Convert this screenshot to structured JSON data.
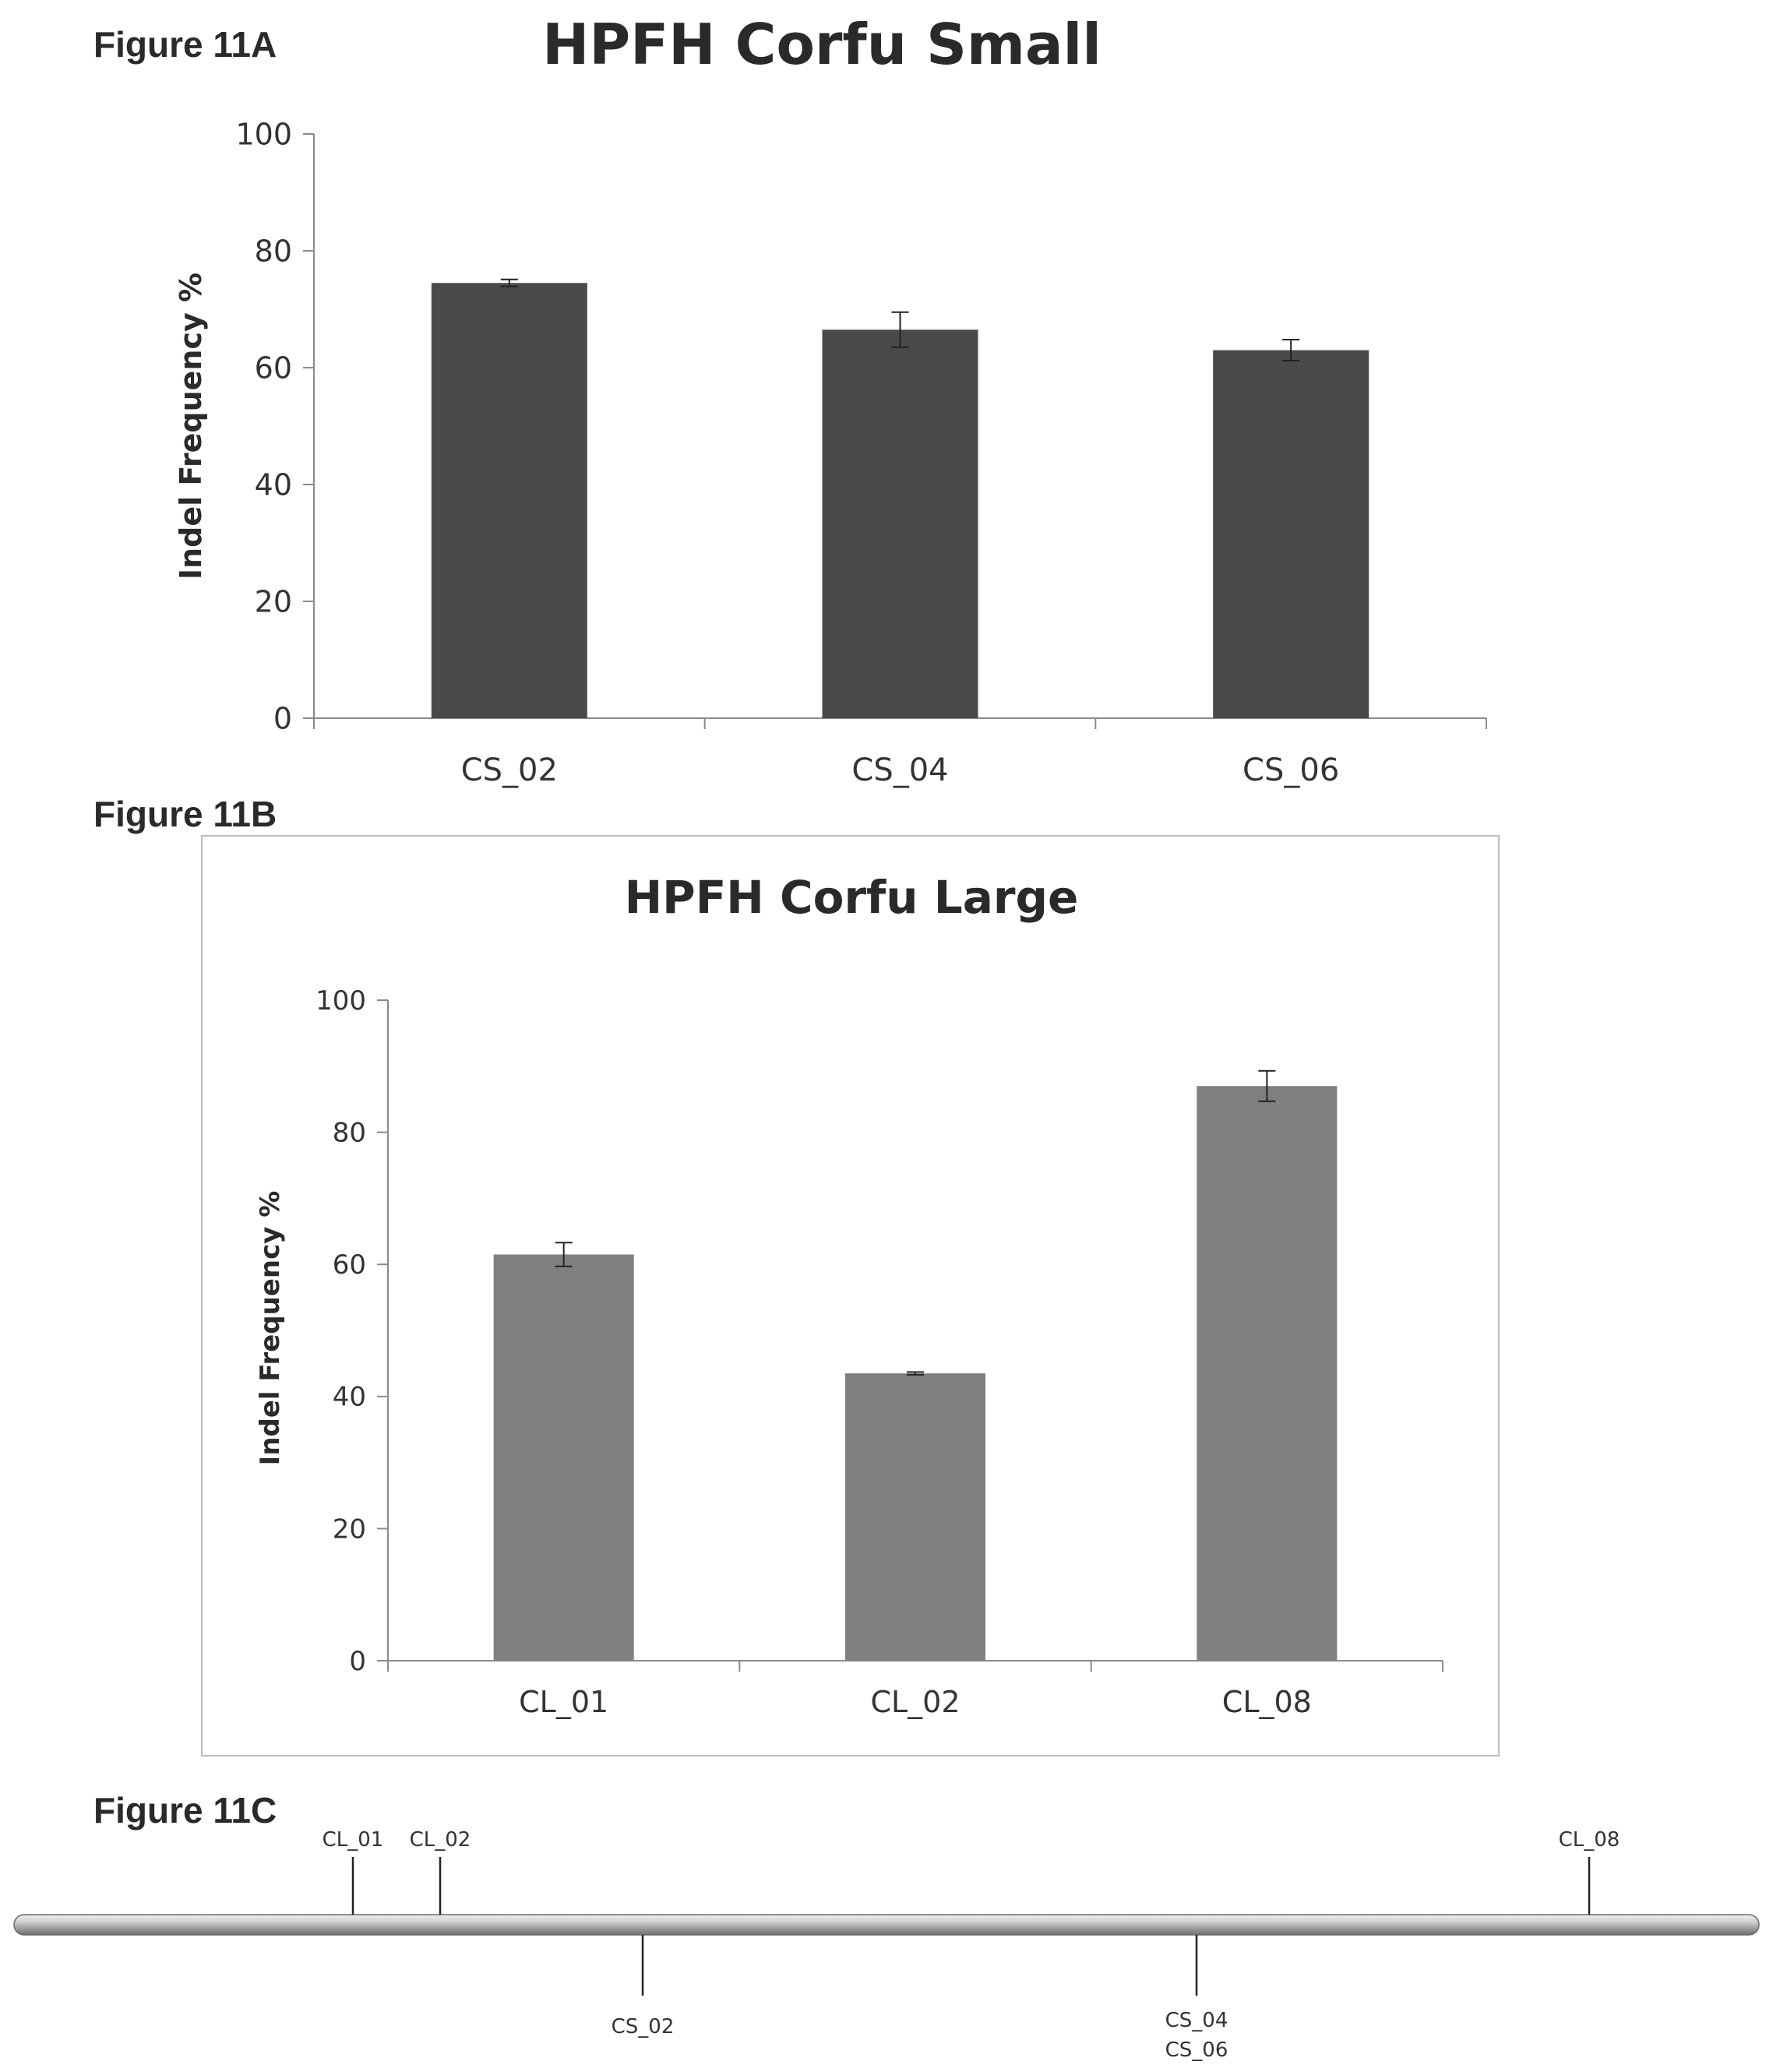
{
  "figures": {
    "a_label": "Figure 11A",
    "b_label": "Figure 11B",
    "c_label": "Figure 11C"
  },
  "chart_data": [
    {
      "type": "bar",
      "title": "HPFH Corfu Small",
      "ylabel": "Indel Frequency  %",
      "xlabel": "",
      "categories": [
        "CS_02",
        "CS_04",
        "CS_06"
      ],
      "values": [
        74.5,
        66.5,
        63
      ],
      "errors": [
        0.6,
        3.0,
        1.8
      ],
      "ylim": [
        0,
        100
      ],
      "yticks": [
        "0",
        "20",
        "40",
        "60",
        "80",
        "100"
      ],
      "bar_color": "#4a4a4a",
      "grid": false,
      "legend": "none"
    },
    {
      "type": "bar",
      "title": "HPFH Corfu Large",
      "ylabel": "Indel Frequency  %",
      "xlabel": "",
      "categories": [
        "CL_01",
        "CL_02",
        "CL_08"
      ],
      "values": [
        61.5,
        43.5,
        87
      ],
      "errors": [
        1.8,
        0.2,
        2.3
      ],
      "ylim": [
        0,
        100
      ],
      "yticks": [
        "0",
        "20",
        "40",
        "60",
        "80",
        "100"
      ],
      "bar_color": "#7f7f7f",
      "grid": false,
      "legend": "none"
    }
  ],
  "locus_map": {
    "above": [
      "CL_01",
      "CL_02",
      "CL_08"
    ],
    "below": [
      "CS_02",
      "CS_04",
      "CS_06"
    ]
  }
}
